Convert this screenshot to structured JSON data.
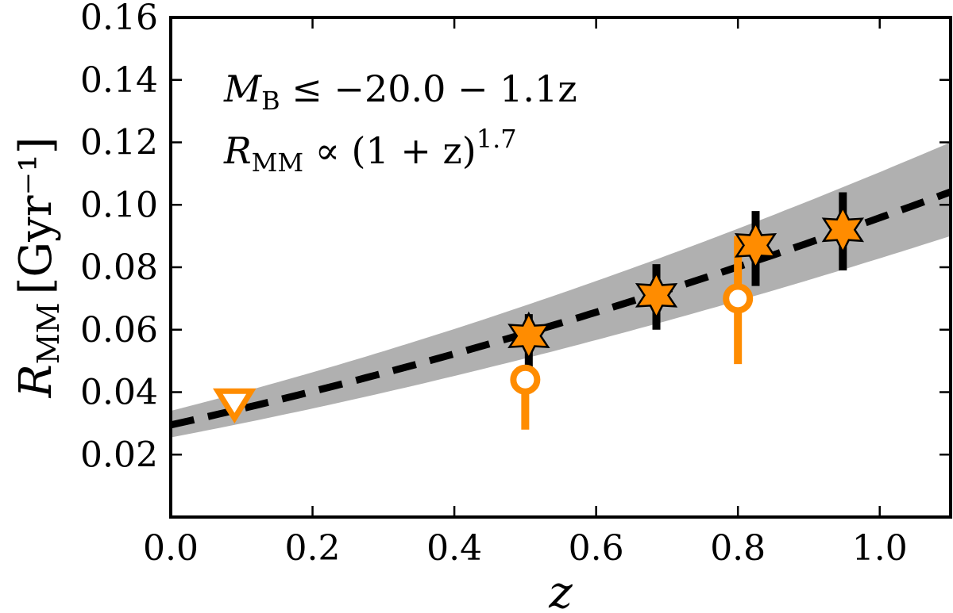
{
  "colors": {
    "accent": "#ff8c00",
    "fit_line": "#000000",
    "band": "#b0b0b0",
    "errorbar_primary": "#000000",
    "errorbar_secondary": "#ff8c00"
  },
  "chart_data": {
    "type": "scatter",
    "xlabel": "z",
    "ylabel": {
      "main": "R",
      "sub": "MM",
      "unit": "[Gyr⁻¹]"
    },
    "xlim": [
      0.0,
      1.1
    ],
    "ylim": [
      0.0,
      0.16
    ],
    "xticks": [
      "0.0",
      "0.2",
      "0.4",
      "0.6",
      "0.8",
      "1.0"
    ],
    "yticks": [
      "0.02",
      "0.04",
      "0.06",
      "0.08",
      "0.10",
      "0.12",
      "0.14",
      "0.16"
    ],
    "xtick_values": [
      0.0,
      0.2,
      0.4,
      0.6,
      0.8,
      1.0
    ],
    "ytick_values": [
      0.02,
      0.04,
      0.06,
      0.08,
      0.1,
      0.12,
      0.14,
      0.16
    ],
    "grid": false,
    "annotations": [
      {
        "pre": "M",
        "sub": "B",
        "post": " ≤ −20.0 − 1.1z"
      },
      {
        "pre": "R",
        "sub": "MM",
        "post": " ∝ (1 + z)",
        "sup": "1.7"
      }
    ],
    "fit": {
      "style": "dashed",
      "a": 0.0295,
      "power": 1.7
    },
    "band": {
      "low_a": 0.0255,
      "high_a": 0.034,
      "power": 1.7
    },
    "series": [
      {
        "marker": "star",
        "points": [
          {
            "x": 0.505,
            "y": 0.058,
            "ylow": 0.046,
            "yhigh": 0.065
          },
          {
            "x": 0.685,
            "y": 0.071,
            "ylow": 0.06,
            "yhigh": 0.081
          },
          {
            "x": 0.825,
            "y": 0.087,
            "ylow": 0.074,
            "yhigh": 0.098
          },
          {
            "x": 0.948,
            "y": 0.092,
            "ylow": 0.079,
            "yhigh": 0.104
          }
        ]
      },
      {
        "marker": "open-circle",
        "points": [
          {
            "x": 0.5,
            "y": 0.044,
            "ylow": 0.028,
            "yhigh": 0.044
          },
          {
            "x": 0.8,
            "y": 0.07,
            "ylow": 0.049,
            "yhigh": 0.09
          }
        ]
      },
      {
        "marker": "open-triangle-down",
        "points": [
          {
            "x": 0.09,
            "y": 0.036
          }
        ]
      }
    ]
  }
}
